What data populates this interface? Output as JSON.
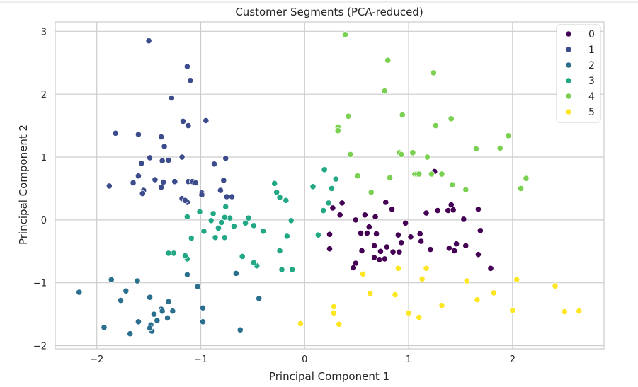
{
  "chart_data": {
    "type": "scatter",
    "title": "Customer Segments (PCA-reduced)",
    "xlabel": "Principal Component 1",
    "ylabel": "Principal Component 2",
    "xlim": [
      -2.4,
      2.88
    ],
    "ylim": [
      -2.05,
      3.15
    ],
    "xticks": [
      -2,
      -1,
      0,
      1,
      2
    ],
    "yticks": [
      -2,
      -1,
      0,
      1,
      2,
      3
    ],
    "tick_labels": {
      "x": [
        "−2",
        "−1",
        "0",
        "1",
        "2"
      ],
      "y": [
        "−2",
        "−1",
        "0",
        "1",
        "2",
        "3"
      ]
    },
    "grid": true,
    "legend_position": "top-right",
    "colors": {
      "0": "#440154",
      "1": "#3b4b8b",
      "2": "#2a6f8e",
      "3": "#22a884",
      "4": "#7ad151",
      "5": "#fde725"
    },
    "series": [
      {
        "name": "0",
        "points": [
          [
            1.25,
            0.77
          ],
          [
            0.27,
            0.19
          ],
          [
            0.36,
            0.27
          ],
          [
            0.34,
            0.08
          ],
          [
            0.24,
            -0.23
          ],
          [
            0.24,
            -0.46
          ],
          [
            0.49,
            0
          ],
          [
            0.54,
            -0.21
          ],
          [
            0.58,
            0.08
          ],
          [
            0.6,
            -0.21
          ],
          [
            0.62,
            -0.11
          ],
          [
            0.68,
            0.05
          ],
          [
            0.69,
            -0.22
          ],
          [
            0.78,
            0.28
          ],
          [
            0.84,
            0.17
          ],
          [
            0.9,
            -0.24
          ],
          [
            0.93,
            -0.36
          ],
          [
            0.97,
            -0.05
          ],
          [
            0.55,
            -0.49
          ],
          [
            0.67,
            -0.41
          ],
          [
            0.73,
            -0.5
          ],
          [
            0.79,
            -0.43
          ],
          [
            0.85,
            -0.51
          ],
          [
            0.91,
            -0.51
          ],
          [
            0.49,
            -0.69
          ],
          [
            0.47,
            -0.76
          ],
          [
            0.67,
            -0.6
          ],
          [
            0.72,
            -0.63
          ],
          [
            0.77,
            -0.62
          ],
          [
            1.02,
            -0.27
          ],
          [
            1.11,
            -0.22
          ],
          [
            1.12,
            -0.34
          ],
          [
            1.17,
            0.11
          ],
          [
            1.21,
            -0.47
          ],
          [
            1.28,
            0.15
          ],
          [
            1.38,
            0.15
          ],
          [
            1.41,
            0.24
          ],
          [
            1.43,
            0.16
          ],
          [
            1.46,
            -0.38
          ],
          [
            1.39,
            -0.45
          ],
          [
            1.44,
            -0.49
          ],
          [
            1.55,
            -0.41
          ],
          [
            1.53,
            0.01
          ],
          [
            1.67,
            0.17
          ],
          [
            1.69,
            -0.17
          ],
          [
            1.67,
            -0.55
          ],
          [
            1.79,
            -0.77
          ]
        ]
      },
      {
        "name": "1",
        "points": [
          [
            -1.5,
            2.85
          ],
          [
            -1.13,
            2.44
          ],
          [
            -1.1,
            2.22
          ],
          [
            -1.28,
            1.94
          ],
          [
            -1.17,
            1.57
          ],
          [
            -1.12,
            1.5
          ],
          [
            -0.95,
            1.58
          ],
          [
            -1.82,
            1.38
          ],
          [
            -1.6,
            1.36
          ],
          [
            -1.38,
            1.32
          ],
          [
            -1.35,
            1.17
          ],
          [
            -1.49,
            0.99
          ],
          [
            -1.37,
            0.94
          ],
          [
            -1.31,
            0.95
          ],
          [
            -1.18,
            1
          ],
          [
            -1.57,
            0.9
          ],
          [
            -1.65,
            0.59
          ],
          [
            -1.6,
            0.7
          ],
          [
            -1.55,
            0.47
          ],
          [
            -1.56,
            0.42
          ],
          [
            -1.44,
            0.64
          ],
          [
            -1.38,
            0.52
          ],
          [
            -1.36,
            0.6
          ],
          [
            -1.25,
            0.61
          ],
          [
            -1.18,
            0.34
          ],
          [
            -1.13,
            0.28
          ],
          [
            -1.15,
            0.31
          ],
          [
            -1.12,
            0.61
          ],
          [
            -1.08,
            0.61
          ],
          [
            -1.05,
            0.59
          ],
          [
            -0.99,
            0.43
          ],
          [
            -0.99,
            0.4
          ],
          [
            -0.87,
            0.89
          ],
          [
            -0.81,
            0.47
          ],
          [
            -0.78,
            0.63
          ],
          [
            -0.76,
            0.98
          ],
          [
            -0.75,
            0.37
          ],
          [
            -0.7,
            0.37
          ],
          [
            -1.88,
            0.54
          ]
        ]
      },
      {
        "name": "2",
        "points": [
          [
            -2.17,
            -1.15
          ],
          [
            -1.93,
            -1.71
          ],
          [
            -1.86,
            -0.95
          ],
          [
            -1.61,
            -0.97
          ],
          [
            -1.77,
            -1.28
          ],
          [
            -1.72,
            -1.13
          ],
          [
            -1.68,
            -1.81
          ],
          [
            -1.6,
            -1.62
          ],
          [
            -1.49,
            -1.23
          ],
          [
            -1.45,
            -1.5
          ],
          [
            -1.48,
            -1.67
          ],
          [
            -1.47,
            -1.77
          ],
          [
            -1.49,
            -1.72
          ],
          [
            -1.42,
            -1.6
          ],
          [
            -1.38,
            -1.42
          ],
          [
            -1.32,
            -1.56
          ],
          [
            -1.31,
            -1.3
          ],
          [
            -1.27,
            -1.45
          ],
          [
            -1.37,
            -1.45
          ],
          [
            -1.13,
            -0.87
          ],
          [
            -1.03,
            -1.06
          ],
          [
            -0.98,
            -1.4
          ],
          [
            -0.98,
            -1.62
          ],
          [
            -0.66,
            -0.85
          ],
          [
            -0.62,
            -1.75
          ],
          [
            -0.44,
            -1.25
          ]
        ]
      },
      {
        "name": "3",
        "points": [
          [
            -0.12,
            -0.79
          ],
          [
            -0.22,
            -0.79
          ],
          [
            -0.29,
            0.58
          ],
          [
            -0.27,
            0.44
          ],
          [
            -0.24,
            0.36
          ],
          [
            -0.18,
            0.31
          ],
          [
            -0.4,
            -0.18
          ],
          [
            -0.57,
            -0.05
          ],
          [
            -0.54,
            0.03
          ],
          [
            -0.49,
            -0.09
          ],
          [
            -0.6,
            -0.58
          ],
          [
            -0.46,
            -0.73
          ],
          [
            -0.49,
            -0.68
          ],
          [
            -0.24,
            -0.49
          ],
          [
            -0.17,
            -0.26
          ],
          [
            -0.13,
            -0.01
          ],
          [
            -0.68,
            -0.1
          ],
          [
            -0.72,
            0.03
          ],
          [
            -0.77,
            0.04
          ],
          [
            -0.8,
            -0.04
          ],
          [
            -0.77,
            -0.28
          ],
          [
            -0.83,
            -0.13
          ],
          [
            -0.86,
            -0.28
          ],
          [
            -0.88,
            0.1
          ],
          [
            -0.9,
            -0.01
          ],
          [
            -0.97,
            -0.18
          ],
          [
            -1.01,
            0.13
          ],
          [
            -1.13,
            0.05
          ],
          [
            -1.13,
            -0.62
          ],
          [
            -1.15,
            -0.57
          ],
          [
            -1.09,
            -0.29
          ],
          [
            -1.26,
            -0.53
          ],
          [
            -1.31,
            -0.53
          ],
          [
            -0.76,
            0.21
          ],
          [
            0.08,
            0.53
          ],
          [
            0.13,
            -0.24
          ],
          [
            0.19,
            0.8
          ],
          [
            0.23,
            0.27
          ],
          [
            0.26,
            0.5
          ],
          [
            0.3,
            0.65
          ],
          [
            0.18,
            0.15
          ]
        ]
      },
      {
        "name": "4",
        "points": [
          [
            0.39,
            2.95
          ],
          [
            0.8,
            2.54
          ],
          [
            1.24,
            2.34
          ],
          [
            0.77,
            2.05
          ],
          [
            0.32,
            1.48
          ],
          [
            0.32,
            1.42
          ],
          [
            0.94,
            1.67
          ],
          [
            0.42,
            1.65
          ],
          [
            1.26,
            1.5
          ],
          [
            1.41,
            1.61
          ],
          [
            0.44,
            1.04
          ],
          [
            0.91,
            1.07
          ],
          [
            0.93,
            1.04
          ],
          [
            1.04,
            1.07
          ],
          [
            1.18,
            1
          ],
          [
            1.65,
            1.13
          ],
          [
            1.88,
            1.14
          ],
          [
            1.96,
            1.34
          ],
          [
            0.51,
            0.7
          ],
          [
            0.64,
            0.44
          ],
          [
            0.82,
            0.67
          ],
          [
            1.06,
            0.73
          ],
          [
            1.08,
            0.73
          ],
          [
            1.1,
            0.73
          ],
          [
            1.22,
            0.73
          ],
          [
            1.32,
            0.73
          ],
          [
            1.42,
            0.56
          ],
          [
            1.55,
            0.48
          ],
          [
            2.08,
            0.5
          ],
          [
            2.13,
            0.66
          ]
        ]
      },
      {
        "name": "5",
        "points": [
          [
            -0.04,
            -1.65
          ],
          [
            0.28,
            -1.38
          ],
          [
            0.28,
            -1.48
          ],
          [
            0.33,
            -1.66
          ],
          [
            0.56,
            -0.86
          ],
          [
            0.63,
            -1.17
          ],
          [
            0.87,
            -1.19
          ],
          [
            0.9,
            -0.77
          ],
          [
            1,
            -1.48
          ],
          [
            1.13,
            -0.94
          ],
          [
            1.1,
            -1.55
          ],
          [
            1.17,
            -0.77
          ],
          [
            1.32,
            -1.36
          ],
          [
            1.56,
            -0.97
          ],
          [
            1.66,
            -1.27
          ],
          [
            1.82,
            -1.16
          ],
          [
            2,
            -1.44
          ],
          [
            2.04,
            -0.95
          ],
          [
            2.41,
            -1.05
          ],
          [
            2.5,
            -1.46
          ],
          [
            2.64,
            -1.45
          ]
        ]
      }
    ]
  }
}
